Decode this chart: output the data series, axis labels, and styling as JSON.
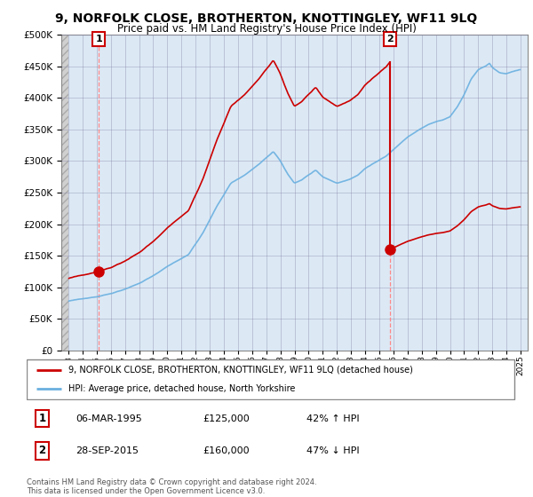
{
  "title": "9, NORFOLK CLOSE, BROTHERTON, KNOTTINGLEY, WF11 9LQ",
  "subtitle": "Price paid vs. HM Land Registry's House Price Index (HPI)",
  "bg_color": "#ffffff",
  "plot_bg_color": "#dce9f5",
  "hatch_bg_color": "#e8e8e8",
  "grid_color": "#aaaacc",
  "sale1_date": 1995.17,
  "sale1_price": 125000,
  "sale2_date": 2015.75,
  "sale2_price": 160000,
  "ylim_max": 500000,
  "ylim_min": 0,
  "xlim_min": 1992.5,
  "xlim_max": 2025.5,
  "hatch_end": 1993.0,
  "red_color": "#cc0000",
  "blue_color": "#6ab0e0",
  "legend_label1": "9, NORFOLK CLOSE, BROTHERTON, KNOTTINGLEY, WF11 9LQ (detached house)",
  "legend_label2": "HPI: Average price, detached house, North Yorkshire",
  "table_row1": [
    "1",
    "06-MAR-1995",
    "£125,000",
    "42% ↑ HPI"
  ],
  "table_row2": [
    "2",
    "28-SEP-2015",
    "£160,000",
    "47% ↓ HPI"
  ],
  "footer": "Contains HM Land Registry data © Crown copyright and database right 2024.\nThis data is licensed under the Open Government Licence v3.0."
}
